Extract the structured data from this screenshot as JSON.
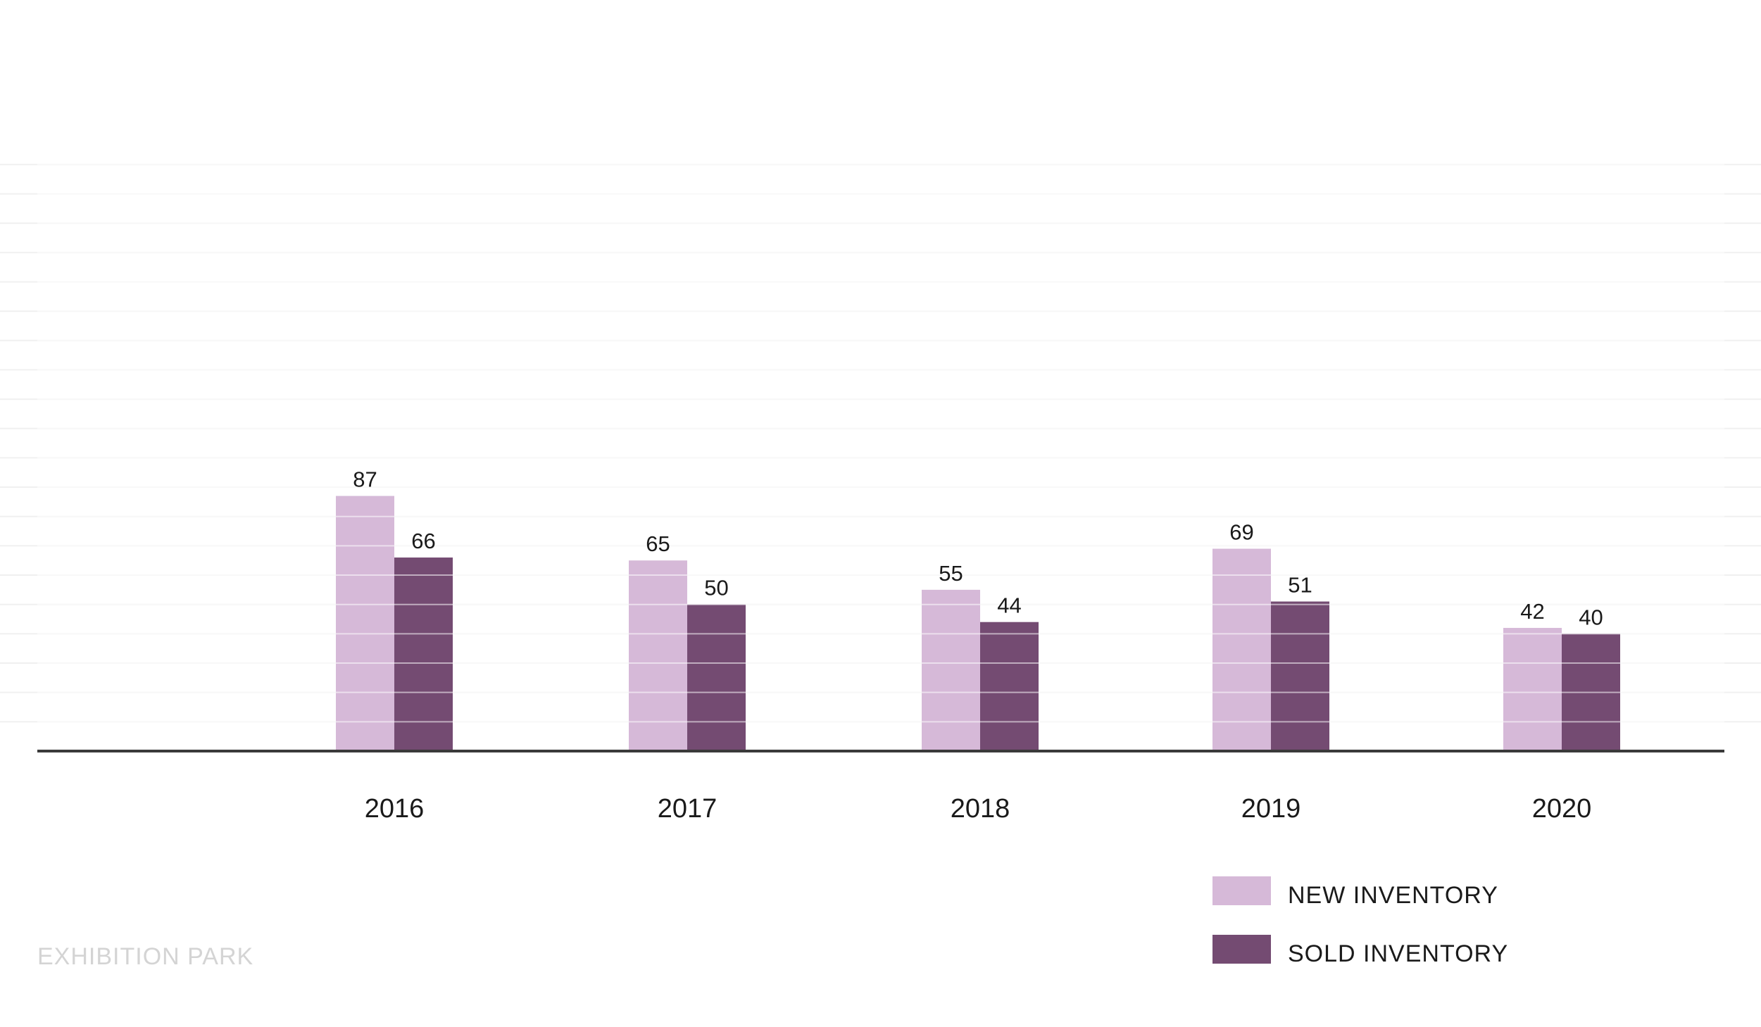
{
  "chart_data": {
    "type": "bar",
    "categories": [
      "2016",
      "2017",
      "2018",
      "2019",
      "2020"
    ],
    "series": [
      {
        "name": "NEW INVENTORY",
        "color": "#d6b9d8",
        "values": [
          87,
          65,
          55,
          69,
          42
        ]
      },
      {
        "name": "SOLD INVENTORY",
        "color": "#744b72",
        "values": [
          66,
          50,
          44,
          51,
          40
        ]
      }
    ],
    "title": "",
    "xlabel": "",
    "ylabel": "",
    "ylim": [
      0,
      200
    ],
    "grid": true,
    "legend_position": "bottom-right",
    "data_labels": true
  },
  "footer": {
    "source_label": "EXHIBITION PARK"
  },
  "colors": {
    "axis": "#3a3a3a",
    "grid": "#f0f0f0",
    "text": "#1a1a1a",
    "footer_text": "#d4d4d4"
  }
}
